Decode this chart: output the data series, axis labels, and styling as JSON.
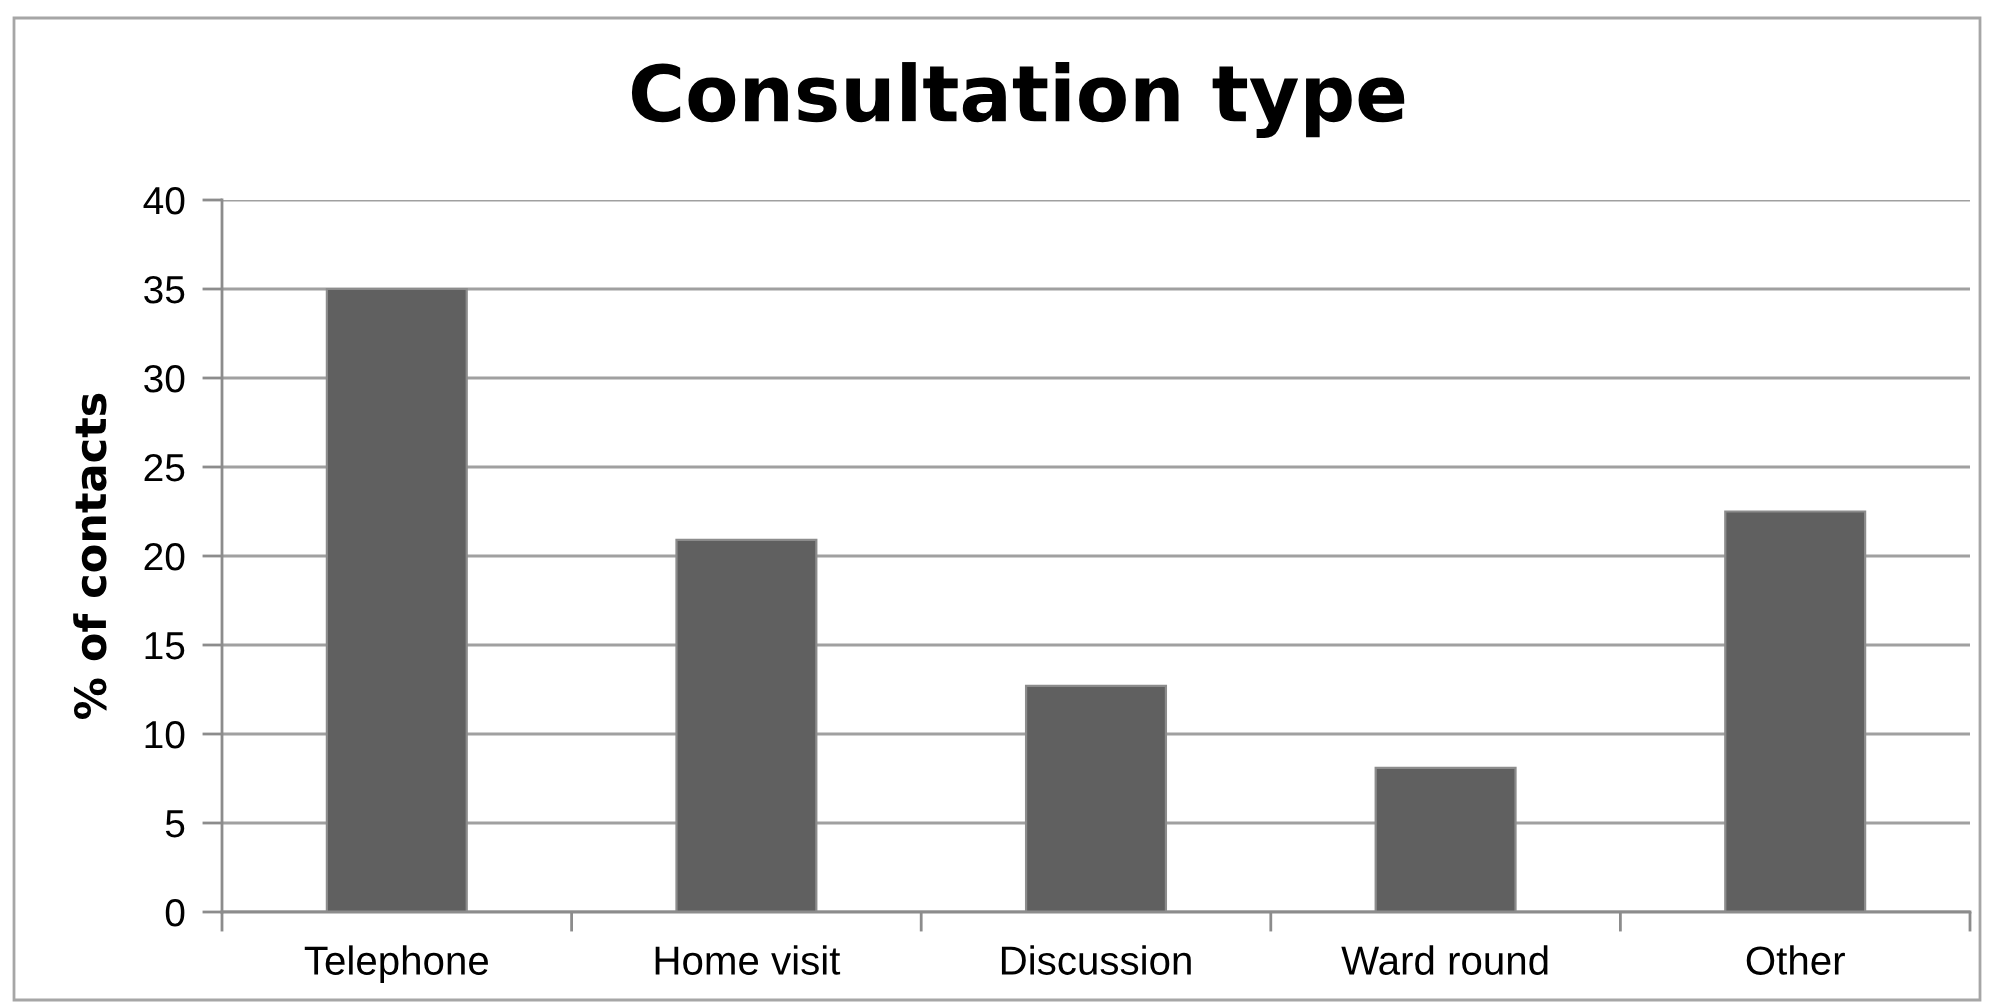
{
  "chart_data": {
    "type": "bar",
    "title": "Consultation type",
    "ylabel": "% of contacts",
    "categories": [
      "Telephone",
      "Home visit",
      "Discussion",
      "Ward round",
      "Other"
    ],
    "values": [
      35,
      20.9,
      12.7,
      8.1,
      22.5
    ],
    "color": "#606060",
    "ylim": [
      0,
      40
    ],
    "yticks": [
      0,
      5,
      10,
      15,
      20,
      25,
      30,
      35,
      40
    ],
    "grid": "y",
    "legend": false
  }
}
